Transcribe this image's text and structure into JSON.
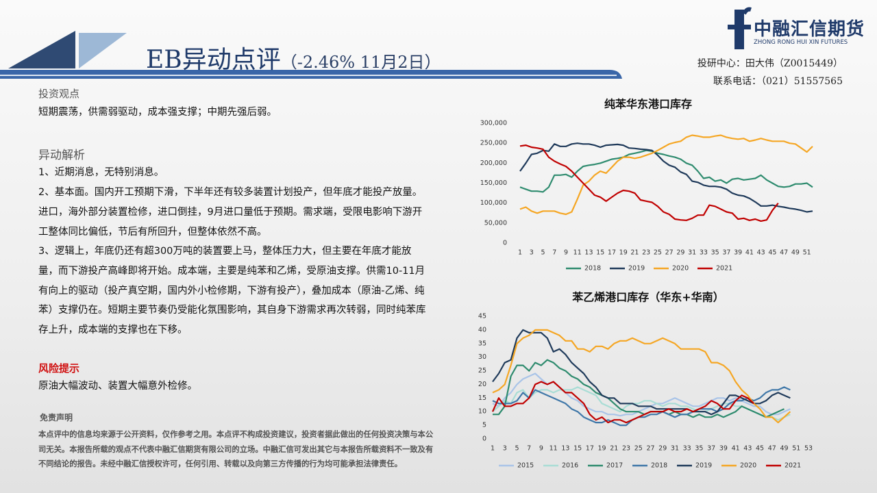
{
  "header": {
    "title": "EB异动点评",
    "subtitle": "（-2.46% 11月2日）",
    "logo": "中融汇信期货",
    "logo_en": "ZHONG RONG HUI XIN FUTURES",
    "contact_1": "投研中心：田大伟（Z0015449）",
    "contact_2": "联系电话：（021）51557565"
  },
  "view": {
    "heading": "投资观点",
    "text": "短期震荡，供需弱驱动，成本强支撑；中期先强后弱。"
  },
  "analysis": {
    "heading": "异动解析",
    "paragraphs": [
      "1、近期消息，无特别消息。",
      "2、基本面。国内开工预期下滑，下半年还有较多装置计划投产，但年底才能投产放量。进口，海外部分装置检修，进口倒挂，9月进口量低于预期。需求端，受限电影响下游开工整体同比偏低，节后有所回升，但整体依然不高。",
      "3、逻辑上，年底仍还有超300万吨的装置要上马，整体压力大，但主要在年底才能放量，而下游投产高峰即将开始。成本端，主要是纯苯和乙烯，受原油支撑。供需10-11月有向上的驱动（投产真空期，国内外小检修期，下游有投产），叠加成本（原油-乙烯、纯苯）支撑仍在。短期主要节奏仍受能化氛围影响，其自身下游需求再次转弱，同时纯苯库存上升，成本端的支撑也在下移。"
    ]
  },
  "risk": {
    "heading": "风险提示",
    "text": "原油大幅波动、装置大幅意外检修。"
  },
  "disclaimer": {
    "heading": "免责声明",
    "text": "本点评中的信息均来源于公开资料，仅作参考之用。本点评不构成投资建议，投资者据此做出的任何投资决策与本公司无关。本报告所载的观点不代表中融汇信期货有限公司的立场。中融汇信可发出其它与本报告所载资料不一致及有不同结论的报告。未经中融汇信授权许可，任何引用、转载以及向第三方传播的行为均可能承担法律责任。"
  },
  "chart_data": [
    {
      "type": "line",
      "title": "纯苯华东港口库存",
      "legend": "bottom",
      "grid": false,
      "categories": [
        1,
        null,
        3,
        null,
        5,
        null,
        7,
        null,
        9,
        null,
        11,
        null,
        13,
        null,
        15,
        null,
        17,
        null,
        19,
        null,
        21,
        null,
        23,
        null,
        25,
        null,
        27,
        null,
        29,
        null,
        31,
        null,
        33,
        null,
        35,
        null,
        37,
        null,
        39,
        null,
        41,
        null,
        43,
        null,
        45,
        null,
        47,
        null,
        49,
        null,
        51,
        null
      ],
      "ylim": [
        0,
        300000
      ],
      "yticks": [
        0,
        {
          "value": 50000,
          "label": "50,000"
        },
        {
          "value": 100000,
          "label": "100,000"
        },
        {
          "value": 150000,
          "label": "150,000"
        },
        {
          "value": 200000,
          "label": "200,000"
        },
        {
          "value": 250000,
          "label": "250,000"
        },
        {
          "value": 300000,
          "label": "300,000"
        }
      ],
      "series": [
        {
          "name": "2018",
          "color": "#2e8b6e",
          "values": [
            140000,
            135000,
            130000,
            130000,
            128000,
            140000,
            170000,
            170000,
            172000,
            165000,
            180000,
            192000,
            195000,
            197000,
            200000,
            205000,
            210000,
            212000,
            215000,
            222000,
            225000,
            228000,
            232000,
            230000,
            225000,
            222000,
            218000,
            215000,
            210000,
            200000,
            195000,
            180000,
            162000,
            165000,
            155000,
            158000,
            150000,
            160000,
            162000,
            158000,
            160000,
            162000,
            170000,
            158000,
            150000,
            142000,
            140000,
            142000,
            148000,
            148000,
            150000,
            140000
          ]
        },
        {
          "name": "2019",
          "color": "#1f3a5a",
          "values": [
            180000,
            200000,
            222000,
            225000,
            232000,
            230000,
            248000,
            242000,
            242000,
            248000,
            250000,
            248000,
            248000,
            245000,
            240000,
            245000,
            246000,
            247000,
            245000,
            238000,
            237000,
            235000,
            234000,
            232000,
            220000,
            205000,
            195000,
            190000,
            178000,
            172000,
            155000,
            152000,
            145000,
            142000,
            142000,
            140000,
            135000,
            125000,
            120000,
            118000,
            112000,
            103000,
            93000,
            93000,
            95000,
            92000,
            90000,
            87000,
            85000,
            82000,
            78000,
            80000
          ]
        },
        {
          "name": "2020",
          "color": "#f5a623",
          "values": [
            85000,
            90000,
            80000,
            75000,
            80000,
            80000,
            80000,
            75000,
            72000,
            78000,
            110000,
            145000,
            155000,
            170000,
            180000,
            175000,
            190000,
            205000,
            215000,
            215000,
            212000,
            215000,
            220000,
            225000,
            232000,
            240000,
            248000,
            252000,
            255000,
            265000,
            270000,
            268000,
            265000,
            265000,
            268000,
            270000,
            265000,
            262000,
            260000,
            262000,
            255000,
            258000,
            262000,
            258000,
            255000,
            255000,
            255000,
            250000,
            248000,
            238000,
            228000,
            242000
          ]
        },
        {
          "name": "2021",
          "color": "#c00000",
          "values": [
            243000,
            245000,
            240000,
            238000,
            235000,
            215000,
            205000,
            198000,
            192000,
            180000,
            165000,
            150000,
            135000,
            120000,
            115000,
            105000,
            115000,
            125000,
            132000,
            130000,
            125000,
            108000,
            105000,
            102000,
            92000,
            78000,
            72000,
            60000,
            58000,
            57000,
            62000,
            70000,
            70000,
            95000,
            92000,
            85000,
            78000,
            75000,
            60000,
            62000,
            57000,
            60000,
            55000,
            58000,
            82000,
            100000,
            null,
            null,
            null,
            null,
            null,
            null
          ]
        }
      ]
    },
    {
      "type": "line",
      "title": "苯乙烯港口库存（华东+华南）",
      "legend": "bottom",
      "grid": false,
      "categories": [
        1,
        null,
        3,
        null,
        5,
        null,
        7,
        null,
        9,
        null,
        11,
        null,
        13,
        null,
        15,
        null,
        17,
        null,
        19,
        null,
        21,
        null,
        23,
        null,
        25,
        null,
        27,
        null,
        29,
        null,
        31,
        null,
        33,
        null,
        35,
        null,
        37,
        null,
        39,
        null,
        41,
        null,
        43,
        null,
        45,
        null,
        47,
        null,
        49,
        null,
        51,
        null,
        53
      ],
      "ylim": [
        0,
        45
      ],
      "yticks": [
        0,
        5,
        10,
        15,
        20,
        25,
        30,
        35,
        40,
        45
      ],
      "series": [
        {
          "name": "2015",
          "color": "#a9c4e8",
          "values": [
            13,
            12,
            15,
            17,
            20,
            22,
            23,
            24,
            22,
            20,
            21,
            19,
            17,
            15,
            14,
            12,
            11,
            10,
            10,
            9,
            9,
            8.5,
            9,
            9,
            10,
            11,
            12,
            13,
            13,
            14,
            15,
            14,
            13,
            12,
            12,
            13,
            14,
            15,
            15,
            14,
            15,
            14,
            13,
            12,
            12,
            10,
            9,
            9,
            10,
            11,
            null,
            null,
            null
          ]
        },
        {
          "name": "2016",
          "color": "#a8ddd5",
          "values": [
            10,
            12,
            14,
            13,
            17,
            18,
            15,
            17,
            18,
            18,
            17,
            18,
            18,
            18,
            19,
            18,
            17,
            16,
            13,
            12,
            11,
            10,
            12,
            13,
            13,
            14,
            14,
            13,
            12,
            13,
            13,
            12,
            12,
            11,
            10,
            10,
            11,
            12,
            13,
            13,
            12,
            12,
            11,
            10,
            9,
            8,
            8,
            7,
            8,
            9,
            null,
            null,
            null
          ]
        },
        {
          "name": "2017",
          "color": "#2e8b6e",
          "values": [
            9,
            9,
            12,
            23,
            27,
            27,
            25,
            28,
            27,
            29,
            28,
            26,
            25,
            23,
            22,
            20,
            19,
            17,
            16,
            15,
            13,
            11,
            10,
            10,
            10,
            9,
            10,
            10,
            10,
            9,
            10,
            9,
            9,
            8,
            9,
            8,
            8,
            9,
            8,
            9,
            10,
            12,
            11,
            10,
            9,
            8,
            9,
            10,
            11,
            null,
            null,
            null,
            null
          ]
        },
        {
          "name": "2018",
          "color": "#3f77a8",
          "values": [
            14,
            13,
            13,
            13,
            14,
            17,
            15,
            18,
            17,
            16,
            15,
            14,
            13,
            11,
            10,
            8,
            7,
            6,
            6,
            7,
            6,
            5,
            5,
            7,
            8,
            8,
            9,
            9,
            10,
            9,
            8,
            9,
            9,
            10,
            11,
            11,
            11,
            10,
            11,
            13,
            14,
            14,
            15,
            14,
            15,
            17,
            18,
            18,
            19,
            18,
            null,
            null,
            null
          ]
        },
        {
          "name": "2019",
          "color": "#1f3a5a",
          "values": [
            21,
            24,
            28,
            29,
            37,
            40,
            39,
            39,
            39,
            37,
            32,
            33,
            31,
            28,
            26,
            24,
            21,
            19,
            16,
            15,
            15,
            13,
            13,
            13,
            12,
            12,
            12,
            11,
            11,
            11,
            11,
            11,
            11,
            10,
            10,
            10,
            9,
            10,
            13,
            16,
            16,
            15,
            14,
            13,
            13,
            14,
            16,
            17,
            16,
            15,
            null,
            null,
            null
          ]
        },
        {
          "name": "2020",
          "color": "#f5a623",
          "values": [
            17,
            18,
            20,
            27,
            35,
            37,
            38,
            40,
            40,
            40,
            39,
            38,
            36,
            36,
            33,
            33,
            32,
            34,
            34,
            33,
            35,
            36,
            36,
            37,
            36,
            35,
            35,
            36,
            37,
            36,
            35,
            33,
            33,
            33,
            33,
            32,
            28,
            28,
            27,
            25,
            21,
            18,
            16,
            13,
            11,
            8,
            8,
            6,
            8,
            10,
            null,
            null,
            null
          ]
        },
        {
          "name": "2021",
          "color": "#c00000",
          "values": [
            10,
            15,
            12,
            12,
            13,
            13,
            15,
            20,
            21,
            20,
            21,
            19,
            17,
            17,
            15,
            13,
            9,
            7,
            8,
            6,
            7,
            7,
            6,
            7,
            8,
            9,
            10,
            10,
            10,
            11,
            10,
            10,
            11,
            10,
            11,
            12,
            14,
            13,
            11,
            11,
            14,
            16,
            15,
            13,
            null,
            null,
            null,
            null,
            null,
            null,
            null,
            null,
            null
          ]
        }
      ]
    }
  ]
}
